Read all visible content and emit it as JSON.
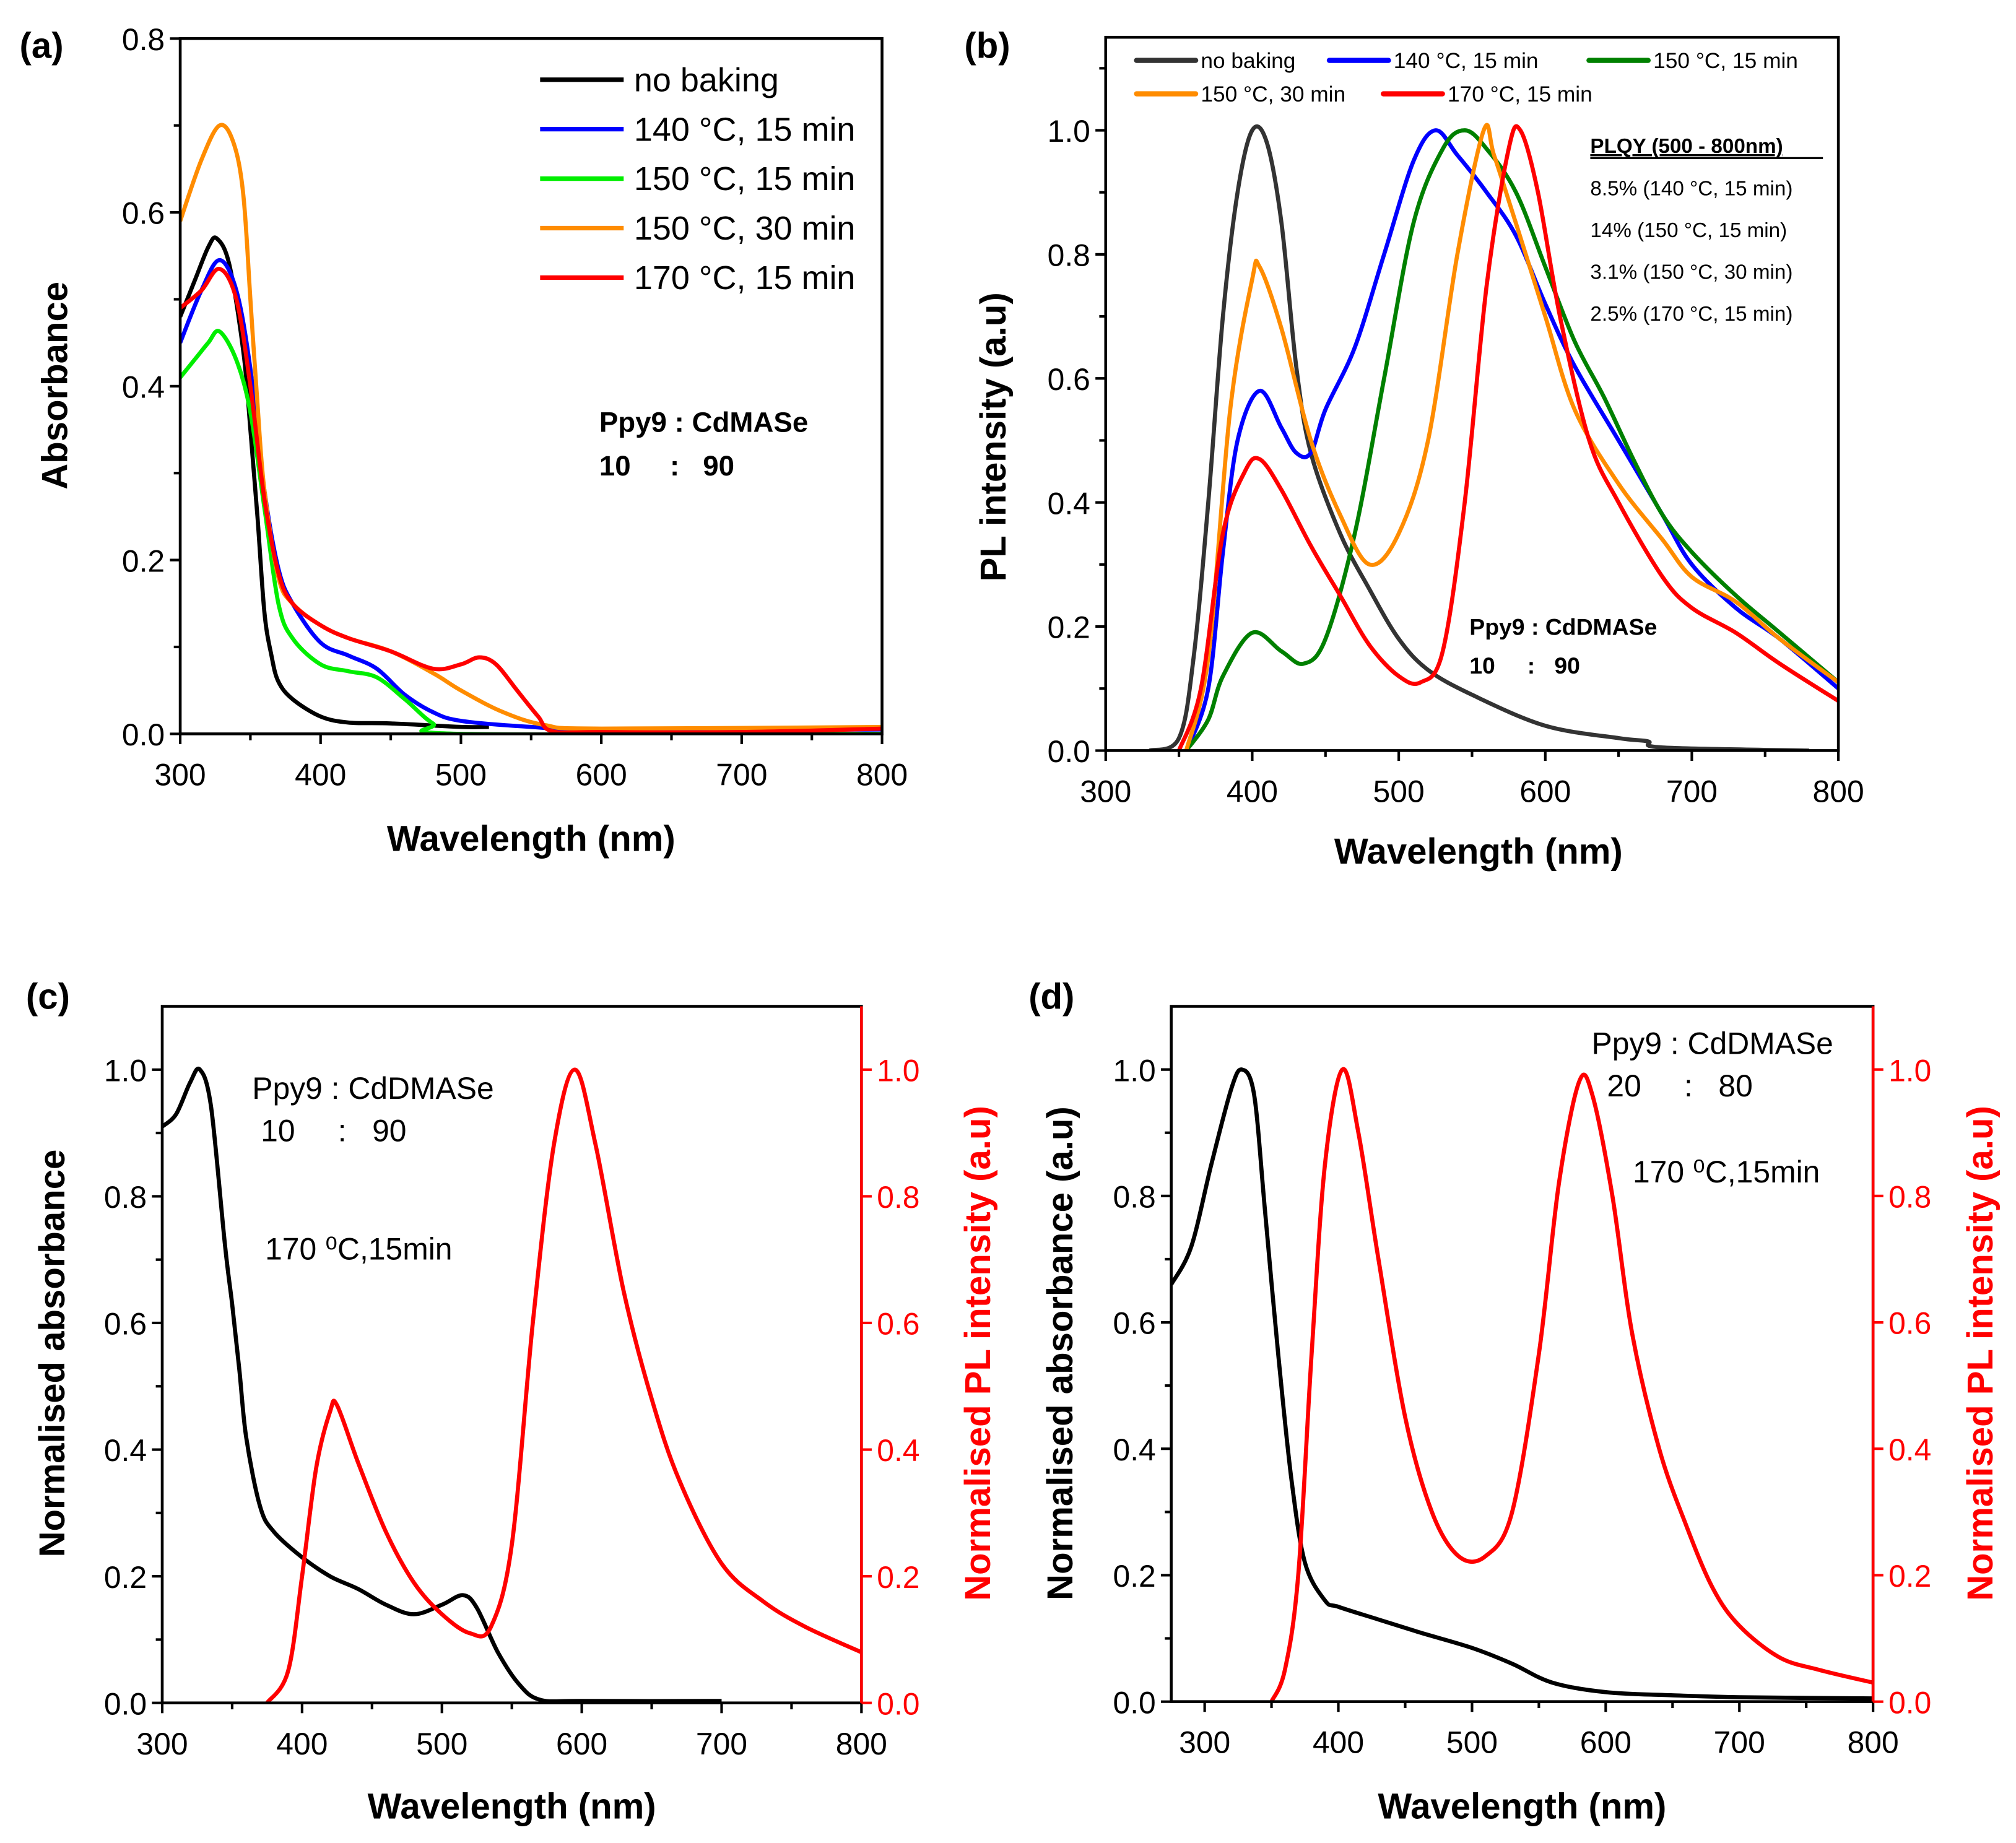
{
  "chart_data": [
    {
      "panel_label": "(a)",
      "type": "line",
      "xlabel": "Wavelength (nm)",
      "ylabel": "Absorbance",
      "xlim": [
        300,
        800
      ],
      "ylim": [
        0,
        0.8
      ],
      "xticks": [
        300,
        400,
        500,
        600,
        700,
        800
      ],
      "yticks": [
        0.0,
        0.2,
        0.4,
        0.6,
        0.8
      ],
      "legend_position": "top-right",
      "annotations": [
        "Ppy9 : CdMASe",
        "10     :   90"
      ],
      "series": [
        {
          "name": "no baking",
          "color": "#000000",
          "x": [
            300,
            310,
            320,
            326,
            335,
            345,
            350,
            355,
            360,
            365,
            370,
            380,
            400,
            420,
            450,
            500,
            520
          ],
          "y": [
            0.48,
            0.52,
            0.56,
            0.57,
            0.54,
            0.44,
            0.35,
            0.25,
            0.14,
            0.09,
            0.06,
            0.04,
            0.02,
            0.013,
            0.012,
            0.008,
            0.008
          ]
        },
        {
          "name": "140 °C, 15 min",
          "color": "#0000ff",
          "x": [
            300,
            315,
            328,
            340,
            350,
            360,
            370,
            380,
            400,
            420,
            440,
            460,
            480,
            500,
            550,
            600,
            800
          ],
          "y": [
            0.45,
            0.51,
            0.545,
            0.51,
            0.42,
            0.28,
            0.19,
            0.15,
            0.105,
            0.09,
            0.075,
            0.045,
            0.025,
            0.015,
            0.008,
            0.005,
            0.005
          ]
        },
        {
          "name": "150 °C, 15 min",
          "color": "#00ee00",
          "x": [
            300,
            310,
            320,
            328,
            340,
            350,
            360,
            370,
            380,
            400,
            420,
            440,
            460,
            480,
            500,
            800
          ],
          "y": [
            0.41,
            0.43,
            0.45,
            0.463,
            0.43,
            0.37,
            0.26,
            0.15,
            0.11,
            0.08,
            0.072,
            0.065,
            0.04,
            0.012,
            0.0,
            0.0
          ]
        },
        {
          "name": "150 °C, 30 min",
          "color": "#ff8c00",
          "x": [
            300,
            315,
            328,
            338,
            345,
            350,
            355,
            360,
            370,
            380,
            400,
            420,
            450,
            480,
            500,
            530,
            560,
            600,
            800
          ],
          "y": [
            0.59,
            0.66,
            0.7,
            0.68,
            0.62,
            0.5,
            0.38,
            0.28,
            0.18,
            0.15,
            0.125,
            0.11,
            0.095,
            0.07,
            0.05,
            0.025,
            0.01,
            0.006,
            0.008
          ]
        },
        {
          "name": "170 °C, 15 min",
          "color": "#ff0000",
          "x": [
            300,
            315,
            328,
            340,
            350,
            360,
            370,
            380,
            400,
            420,
            450,
            480,
            500,
            513,
            525,
            540,
            555,
            565,
            600,
            700,
            800
          ],
          "y": [
            0.49,
            0.51,
            0.535,
            0.5,
            0.4,
            0.27,
            0.185,
            0.15,
            0.125,
            0.11,
            0.095,
            0.075,
            0.08,
            0.088,
            0.08,
            0.05,
            0.02,
            0.003,
            0.002,
            0.002,
            0.006
          ]
        }
      ]
    },
    {
      "panel_label": "(b)",
      "type": "line",
      "xlabel": "Wavelength (nm)",
      "ylabel": "PL intensity (a.u)",
      "xlim": [
        300,
        800
      ],
      "ylim": [
        0,
        1.15
      ],
      "xticks": [
        300,
        400,
        500,
        600,
        700,
        800
      ],
      "yticks": [
        0.0,
        0.2,
        0.4,
        0.6,
        0.8,
        1.0
      ],
      "legend_position": "top",
      "annotations": [
        "Ppy9 : CdDMASe",
        "10     :   90"
      ],
      "plqy_title": "PLQY (500 - 800nm)",
      "plqy": [
        "8.5% (140 °C, 15 min)",
        "14% (150 °C, 15 min)",
        "3.1% (150 °C, 30 min)",
        "2.5% (170 °C, 15 min)"
      ],
      "series": [
        {
          "name": "no baking",
          "color": "#333333",
          "x": [
            330,
            350,
            360,
            370,
            380,
            390,
            400,
            410,
            420,
            430,
            440,
            460,
            480,
            500,
            520,
            550,
            600,
            650,
            670,
            680,
            780
          ],
          "y": [
            0,
            0.02,
            0.15,
            0.4,
            0.7,
            0.9,
            1.0,
            0.98,
            0.85,
            0.62,
            0.48,
            0.35,
            0.26,
            0.18,
            0.13,
            0.09,
            0.04,
            0.02,
            0.015,
            0.005,
            0
          ]
        },
        {
          "name": "140 °C, 15 min",
          "color": "#0000ff",
          "x": [
            355,
            370,
            380,
            390,
            405,
            420,
            430,
            440,
            450,
            470,
            490,
            510,
            525,
            540,
            560,
            580,
            600,
            620,
            650,
            680,
            700,
            730,
            760,
            800
          ],
          "y": [
            0,
            0.1,
            0.32,
            0.5,
            0.58,
            0.52,
            0.48,
            0.48,
            0.55,
            0.65,
            0.8,
            0.95,
            1.0,
            0.96,
            0.9,
            0.83,
            0.72,
            0.62,
            0.5,
            0.38,
            0.3,
            0.23,
            0.18,
            0.1
          ]
        },
        {
          "name": "150 °C, 15 min",
          "color": "#008000",
          "x": [
            355,
            370,
            380,
            400,
            420,
            435,
            450,
            470,
            490,
            510,
            530,
            545,
            560,
            580,
            600,
            620,
            640,
            660,
            680,
            700,
            730,
            760,
            800
          ],
          "y": [
            0,
            0.05,
            0.12,
            0.19,
            0.16,
            0.14,
            0.18,
            0.35,
            0.6,
            0.85,
            0.97,
            1.0,
            0.97,
            0.9,
            0.78,
            0.66,
            0.57,
            0.47,
            0.38,
            0.32,
            0.25,
            0.19,
            0.11
          ]
        },
        {
          "name": "150 °C, 30 min",
          "color": "#ff8c00",
          "x": [
            355,
            370,
            385,
            400,
            405,
            420,
            440,
            460,
            480,
            500,
            520,
            540,
            558,
            565,
            580,
            600,
            620,
            650,
            680,
            700,
            730,
            760,
            800
          ],
          "y": [
            0,
            0.15,
            0.55,
            0.76,
            0.78,
            0.68,
            0.5,
            0.38,
            0.3,
            0.35,
            0.5,
            0.8,
            1.0,
            0.96,
            0.85,
            0.7,
            0.55,
            0.43,
            0.34,
            0.28,
            0.24,
            0.18,
            0.11
          ]
        },
        {
          "name": "170 °C, 15 min",
          "color": "#ff0000",
          "x": [
            350,
            365,
            380,
            395,
            405,
            420,
            440,
            460,
            480,
            500,
            515,
            530,
            545,
            560,
            575,
            583,
            595,
            610,
            630,
            650,
            680,
            700,
            730,
            760,
            800
          ],
          "y": [
            0,
            0.1,
            0.35,
            0.45,
            0.47,
            0.42,
            0.33,
            0.25,
            0.17,
            0.12,
            0.11,
            0.16,
            0.4,
            0.75,
            0.97,
            1.0,
            0.9,
            0.7,
            0.5,
            0.4,
            0.28,
            0.23,
            0.19,
            0.14,
            0.08
          ]
        }
      ]
    },
    {
      "panel_label": "(c)",
      "type": "line",
      "xlabel": "Wavelength (nm)",
      "ylabel": "Normalised absorbance",
      "y2label": "Normalised PL intensity (a.u)",
      "xlim": [
        300,
        800
      ],
      "ylim": [
        0,
        1.1
      ],
      "y2lim": [
        0,
        1.1
      ],
      "xticks": [
        300,
        400,
        500,
        600,
        700,
        800
      ],
      "yticks": [
        0.0,
        0.2,
        0.4,
        0.6,
        0.8,
        1.0
      ],
      "annotations": [
        "Ppy9 : CdDMASe",
        " 10     :   90",
        "170 ⁰C,15min"
      ],
      "series": [
        {
          "axis": "left",
          "color": "#000000",
          "x": [
            300,
            310,
            320,
            327,
            335,
            345,
            350,
            355,
            360,
            370,
            380,
            400,
            420,
            440,
            460,
            480,
            500,
            515,
            525,
            540,
            555,
            570,
            600,
            700
          ],
          "y": [
            0.91,
            0.93,
            0.98,
            1.0,
            0.94,
            0.72,
            0.63,
            0.53,
            0.42,
            0.31,
            0.27,
            0.23,
            0.2,
            0.18,
            0.155,
            0.14,
            0.155,
            0.17,
            0.15,
            0.08,
            0.03,
            0.005,
            0.003,
            0.003
          ]
        },
        {
          "axis": "right",
          "color": "#ff0000",
          "x": [
            375,
            390,
            400,
            410,
            420,
            425,
            440,
            460,
            480,
            500,
            520,
            535,
            550,
            565,
            580,
            595,
            610,
            630,
            650,
            670,
            700,
            730,
            760,
            800
          ],
          "y": [
            0,
            0.05,
            0.2,
            0.37,
            0.46,
            0.47,
            0.38,
            0.27,
            0.19,
            0.14,
            0.11,
            0.12,
            0.25,
            0.6,
            0.88,
            1.0,
            0.88,
            0.65,
            0.48,
            0.35,
            0.22,
            0.16,
            0.12,
            0.08
          ]
        }
      ]
    },
    {
      "panel_label": "(d)",
      "type": "line",
      "xlabel": "Wavelength (nm)",
      "ylabel": "Normalised absorbance (a.u)",
      "y2label": "Normalised PL intensity (a.u)",
      "xlim": [
        275,
        800
      ],
      "ylim": [
        0,
        1.1
      ],
      "y2lim": [
        0,
        1.1
      ],
      "xticks": [
        300,
        400,
        500,
        600,
        700,
        800
      ],
      "yticks": [
        0.0,
        0.2,
        0.4,
        0.6,
        0.8,
        1.0
      ],
      "annotations": [
        "Ppy9 : CdDMASe",
        "20     :   80",
        "170 ⁰C,15min"
      ],
      "series": [
        {
          "axis": "left",
          "color": "#000000",
          "x": [
            275,
            290,
            305,
            320,
            328,
            337,
            345,
            355,
            365,
            375,
            390,
            400,
            430,
            460,
            500,
            530,
            560,
            600,
            650,
            700,
            800
          ],
          "y": [
            0.66,
            0.72,
            0.85,
            0.97,
            1.0,
            0.96,
            0.78,
            0.55,
            0.35,
            0.22,
            0.16,
            0.15,
            0.13,
            0.11,
            0.085,
            0.06,
            0.03,
            0.015,
            0.01,
            0.007,
            0.005
          ]
        },
        {
          "axis": "right",
          "color": "#ff0000",
          "x": [
            350,
            360,
            370,
            380,
            390,
            403,
            415,
            430,
            450,
            470,
            490,
            510,
            530,
            550,
            565,
            580,
            590,
            605,
            620,
            640,
            660,
            680,
            700,
            730,
            760,
            800
          ],
          "y": [
            0,
            0.05,
            0.2,
            0.55,
            0.85,
            1.0,
            0.9,
            0.7,
            0.45,
            0.3,
            0.23,
            0.23,
            0.3,
            0.55,
            0.82,
            0.98,
            0.96,
            0.8,
            0.58,
            0.4,
            0.28,
            0.18,
            0.12,
            0.07,
            0.05,
            0.03
          ]
        }
      ]
    }
  ]
}
